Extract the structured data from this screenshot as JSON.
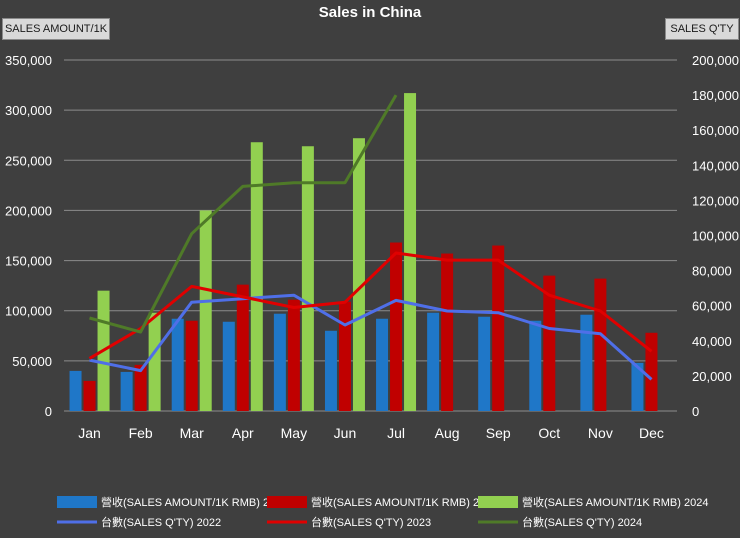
{
  "chart_data": {
    "type": "bar",
    "title": "Sales in China",
    "ylabel": "SALES AMOUNT/1K",
    "y2label": "SALES Q'TY",
    "categories": [
      "Jan",
      "Feb",
      "Mar",
      "Apr",
      "May",
      "Jun",
      "Jul",
      "Aug",
      "Sep",
      "Oct",
      "Nov",
      "Dec"
    ],
    "ylim": [
      0,
      350000
    ],
    "y2lim": [
      0,
      200000
    ],
    "yticks": [
      "0",
      "50,000",
      "100,000",
      "150,000",
      "200,000",
      "250,000",
      "300,000",
      "350,000"
    ],
    "y2ticks": [
      "0",
      "20,000",
      "40,000",
      "60,000",
      "80,000",
      "100,000",
      "120,000",
      "140,000",
      "160,000",
      "180,000",
      "200,000"
    ],
    "grid": true,
    "legend_position": "bottom",
    "bar_series": [
      {
        "name": "營收(SALES AMOUNT/1K RMB) 2022",
        "color": "#1f77c8",
        "values": [
          40000,
          39000,
          92000,
          89000,
          97000,
          80000,
          92000,
          98000,
          94000,
          90000,
          96000,
          48000
        ]
      },
      {
        "name": "營收(SALES AMOUNT/1K RMB) 2023",
        "color": "#c00000",
        "values": [
          30000,
          46000,
          90000,
          126000,
          111000,
          109000,
          168000,
          157000,
          165000,
          135000,
          132000,
          78000
        ]
      },
      {
        "name": "營收(SALES AMOUNT/1K RMB) 2024",
        "color": "#92d050",
        "values": [
          120000,
          98000,
          200000,
          268000,
          264000,
          272000,
          317000,
          null,
          null,
          null,
          null,
          null
        ]
      }
    ],
    "line_series": [
      {
        "name": "台數(SALES Q'TY) 2022",
        "color": "#4f6fe8",
        "values": [
          29000,
          23000,
          62000,
          64000,
          66000,
          49000,
          63000,
          57000,
          56000,
          47000,
          44000,
          18000
        ]
      },
      {
        "name": "台數(SALES Q'TY) 2023",
        "color": "#e00000",
        "values": [
          30000,
          47000,
          71000,
          65000,
          59000,
          62000,
          90000,
          86000,
          86000,
          66000,
          57000,
          34000
        ]
      },
      {
        "name": "台數(SALES Q'TY) 2024",
        "color": "#4f7a28",
        "values": [
          53000,
          45000,
          101000,
          128000,
          130000,
          130000,
          180000,
          null,
          null,
          null,
          null,
          null
        ]
      }
    ]
  }
}
